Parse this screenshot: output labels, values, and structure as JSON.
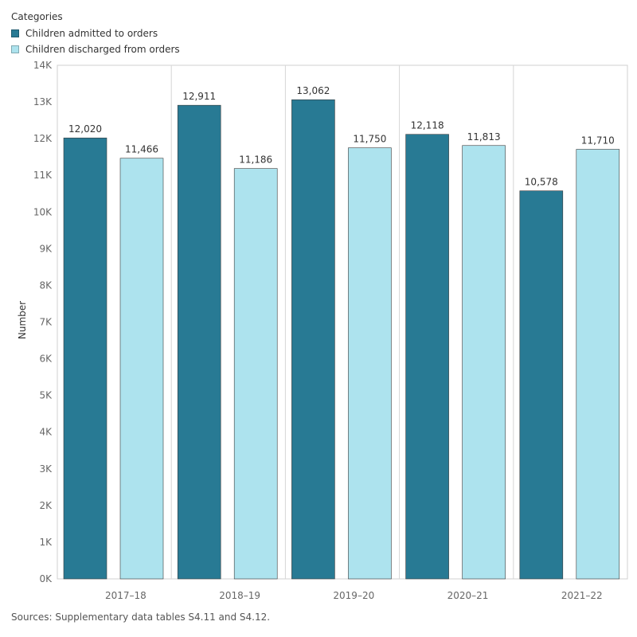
{
  "legend": {
    "title": "Categories",
    "items": [
      {
        "label": "Children admitted to orders",
        "color": "#287a94"
      },
      {
        "label": "Children discharged from orders",
        "color": "#ade3ee"
      }
    ]
  },
  "source": "Sources: Supplementary data tables S4.11 and S4.12.",
  "chart_data": {
    "type": "bar",
    "title": "",
    "xlabel": "",
    "ylabel": "Number",
    "categories": [
      "2017–18",
      "2018–19",
      "2019–20",
      "2020–21",
      "2021–22"
    ],
    "series": [
      {
        "name": "Children admitted to orders",
        "color": "#287a94",
        "values": [
          12020,
          12911,
          13062,
          12118,
          10578
        ],
        "labels": [
          "12,020",
          "12,911",
          "13,062",
          "12,118",
          "10,578"
        ]
      },
      {
        "name": "Children discharged from orders",
        "color": "#ade3ee",
        "values": [
          11466,
          11186,
          11750,
          11813,
          11710
        ],
        "labels": [
          "11,466",
          "11,186",
          "11,750",
          "11,813",
          "11,710"
        ]
      }
    ],
    "ylim": [
      0,
      14000
    ],
    "yticks": [
      0,
      1000,
      2000,
      3000,
      4000,
      5000,
      6000,
      7000,
      8000,
      9000,
      10000,
      11000,
      12000,
      13000,
      14000
    ],
    "ytick_labels": [
      "0K",
      "1K",
      "2K",
      "3K",
      "4K",
      "5K",
      "6K",
      "7K",
      "8K",
      "9K",
      "10K",
      "11K",
      "12K",
      "13K",
      "14K"
    ],
    "grid": false,
    "legend_position": "top-left"
  }
}
